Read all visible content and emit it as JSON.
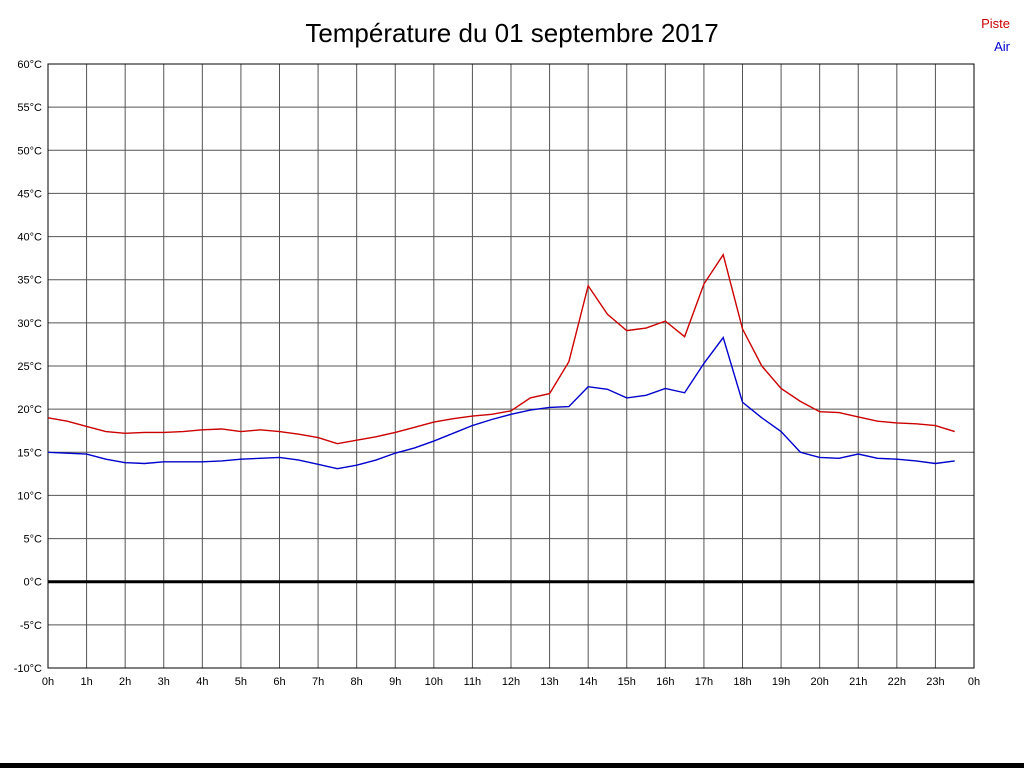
{
  "title": "Température du 01 septembre 2017",
  "legend": [
    {
      "label": "Piste",
      "color": "#cc0000"
    },
    {
      "label": "Air",
      "color": "#0000cc"
    }
  ],
  "chart_data": {
    "type": "line",
    "title": "Température du 01 septembre 2017",
    "xlabel": "",
    "ylabel": "",
    "ylim": [
      -10,
      60
    ],
    "ytick_step": 5,
    "ytick_suffix": "°C",
    "grid": true,
    "zero_line": true,
    "legend_position": "top-right",
    "xtick_labels": [
      "0h",
      "1h",
      "2h",
      "3h",
      "4h",
      "5h",
      "6h",
      "7h",
      "8h",
      "9h",
      "10h",
      "11h",
      "12h",
      "13h",
      "14h",
      "15h",
      "16h",
      "17h",
      "18h",
      "19h",
      "20h",
      "21h",
      "22h",
      "23h",
      "0h"
    ],
    "x": [
      0,
      0.5,
      1,
      1.5,
      2,
      2.5,
      3,
      3.5,
      4,
      4.5,
      5,
      5.5,
      6,
      6.5,
      7,
      7.5,
      8,
      8.5,
      9,
      9.5,
      10,
      10.5,
      11,
      11.5,
      12,
      12.5,
      13,
      13.5,
      14,
      14.5,
      15,
      15.5,
      16,
      16.5,
      17,
      17.5,
      18,
      18.5,
      19,
      19.5,
      20,
      20.5,
      21,
      21.5,
      22,
      22.5,
      23,
      23.5
    ],
    "series": [
      {
        "name": "Piste",
        "color": "#cc0000",
        "values": [
          19.0,
          18.6,
          18.0,
          17.4,
          17.2,
          17.3,
          17.3,
          17.4,
          17.6,
          17.7,
          17.4,
          17.6,
          17.4,
          17.1,
          16.7,
          16.0,
          16.4,
          16.8,
          17.3,
          17.9,
          18.5,
          18.9,
          19.2,
          19.4,
          19.8,
          21.3,
          21.8,
          25.5,
          34.3,
          31.0,
          29.1,
          29.4,
          30.2,
          28.4,
          34.5,
          37.9,
          29.3,
          25.0,
          22.4,
          20.9,
          19.7,
          19.6,
          19.1,
          18.6,
          18.4,
          18.3,
          18.1,
          17.4
        ]
      },
      {
        "name": "Air",
        "color": "#0000cc",
        "values": [
          15.0,
          14.9,
          14.8,
          14.2,
          13.8,
          13.7,
          13.9,
          13.9,
          13.9,
          14.0,
          14.2,
          14.3,
          14.4,
          14.1,
          13.6,
          13.1,
          13.5,
          14.1,
          14.9,
          15.5,
          16.3,
          17.2,
          18.1,
          18.8,
          19.4,
          19.9,
          20.2,
          20.3,
          22.6,
          22.3,
          21.3,
          21.6,
          22.4,
          21.9,
          25.3,
          28.3,
          20.8,
          19.0,
          17.4,
          15.0,
          14.4,
          14.3,
          14.8,
          14.3,
          14.2,
          14.0,
          13.7,
          14.0
        ]
      }
    ]
  }
}
